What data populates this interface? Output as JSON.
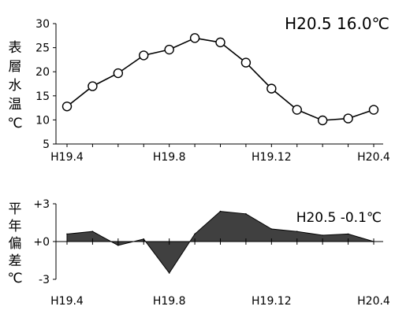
{
  "chart_data": [
    {
      "type": "line",
      "title": "H20.5  16.0℃",
      "ylabel": "表層水温℃",
      "ylabel_chars": [
        "表",
        "層",
        "水",
        "温",
        "℃"
      ],
      "ylim": [
        5,
        30
      ],
      "yticks": [
        "5",
        "10",
        "15",
        "20",
        "25",
        "30"
      ],
      "x": [
        "H19.4",
        "H19.5",
        "H19.6",
        "H19.7",
        "H19.8",
        "H19.9",
        "H19.10",
        "H19.11",
        "H19.12",
        "H20.1",
        "H20.2",
        "H20.3",
        "H20.4"
      ],
      "xtick_labels": [
        "H19.4",
        "H19.8",
        "H19.12",
        "H20.4"
      ],
      "values": [
        12.8,
        17.0,
        19.7,
        23.4,
        24.6,
        27.0,
        26.1,
        21.9,
        16.5,
        12.1,
        9.9,
        10.3,
        12.1
      ],
      "marker": "open-circle",
      "line_color": "#000000"
    },
    {
      "type": "area",
      "title": "H20.5  -0.1℃",
      "ylabel": "平年偏差℃",
      "ylabel_chars": [
        "平",
        "年",
        "偏",
        "差",
        "℃"
      ],
      "ylim": [
        -3,
        3
      ],
      "yticks": [
        "+3",
        "+0",
        "-3"
      ],
      "x": [
        "H19.4",
        "H19.5",
        "H19.6",
        "H19.7",
        "H19.8",
        "H19.9",
        "H19.10",
        "H19.11",
        "H19.12",
        "H20.1",
        "H20.2",
        "H20.3",
        "H20.4"
      ],
      "xtick_labels": [
        "H19.4",
        "H19.8",
        "H19.12",
        "H20.4"
      ],
      "values": [
        0.6,
        0.8,
        -0.3,
        0.2,
        -2.5,
        0.6,
        2.4,
        2.2,
        1.0,
        0.8,
        0.5,
        0.6,
        0.0
      ],
      "fill_color": "#404040"
    }
  ]
}
